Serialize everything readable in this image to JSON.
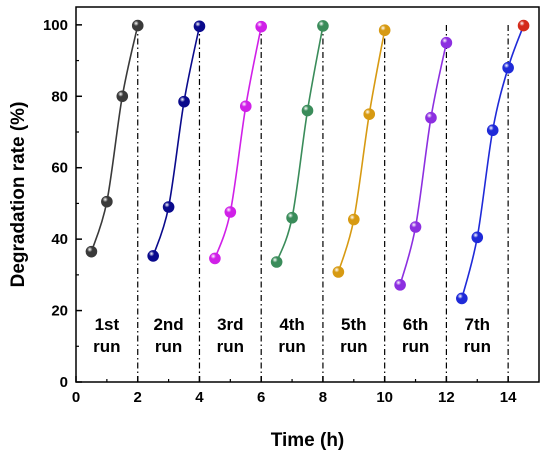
{
  "chart_data": {
    "type": "scatter",
    "title": "",
    "xlabel": "Time (h)",
    "ylabel": "Degradation rate (%)",
    "xlim": [
      0,
      15
    ],
    "ylim": [
      0,
      105
    ],
    "xticks": [
      "0",
      "2",
      "4",
      "6",
      "8",
      "10",
      "12",
      "14"
    ],
    "yticks": [
      "0",
      "20",
      "40",
      "60",
      "80",
      "100"
    ],
    "grid": false,
    "legend": "none",
    "run_separators_x": [
      2,
      4,
      6,
      8,
      10,
      12,
      14
    ],
    "series": [
      {
        "label_lines": [
          "1st",
          "run"
        ],
        "label_x": 1.0,
        "color": "#3a3a3a",
        "x": [
          0.5,
          1.0,
          1.5,
          2.0
        ],
        "y": [
          36.5,
          50.5,
          80.0,
          99.8
        ]
      },
      {
        "label_lines": [
          "2nd",
          "run"
        ],
        "label_x": 3.0,
        "color": "#0a0a8c",
        "x": [
          2.5,
          3.0,
          3.5,
          4.0
        ],
        "y": [
          35.3,
          49.0,
          78.5,
          99.6
        ]
      },
      {
        "label_lines": [
          "3rd",
          "run"
        ],
        "label_x": 5.0,
        "color": "#d020e8",
        "x": [
          4.5,
          5.0,
          5.5,
          6.0
        ],
        "y": [
          34.6,
          47.6,
          77.2,
          99.5
        ]
      },
      {
        "label_lines": [
          "4th",
          "run"
        ],
        "label_x": 7.0,
        "color": "#3a8c5a",
        "x": [
          6.5,
          7.0,
          7.5,
          8.0
        ],
        "y": [
          33.6,
          46.0,
          76.0,
          99.7
        ]
      },
      {
        "label_lines": [
          "5th",
          "run"
        ],
        "label_x": 9.0,
        "color": "#d79a12",
        "x": [
          8.5,
          9.0,
          9.5,
          10.0
        ],
        "y": [
          30.8,
          45.5,
          75.0,
          98.5
        ]
      },
      {
        "label_lines": [
          "6th",
          "run"
        ],
        "label_x": 11.0,
        "color": "#8c2fe0",
        "x": [
          10.5,
          11.0,
          11.5,
          12.0
        ],
        "y": [
          27.2,
          43.4,
          74.0,
          95.0
        ]
      },
      {
        "label_lines": [
          "7th",
          "run"
        ],
        "label_x": 13.0,
        "color": "#1f2ad8",
        "x": [
          12.5,
          13.0,
          13.5,
          14.0,
          14.5
        ],
        "y": [
          23.4,
          40.5,
          70.5,
          88.0,
          99.8
        ],
        "point_colors": [
          "#1f2ad8",
          "#1f2ad8",
          "#1f2ad8",
          "#1f2ad8",
          "#d42a1a"
        ]
      }
    ]
  }
}
